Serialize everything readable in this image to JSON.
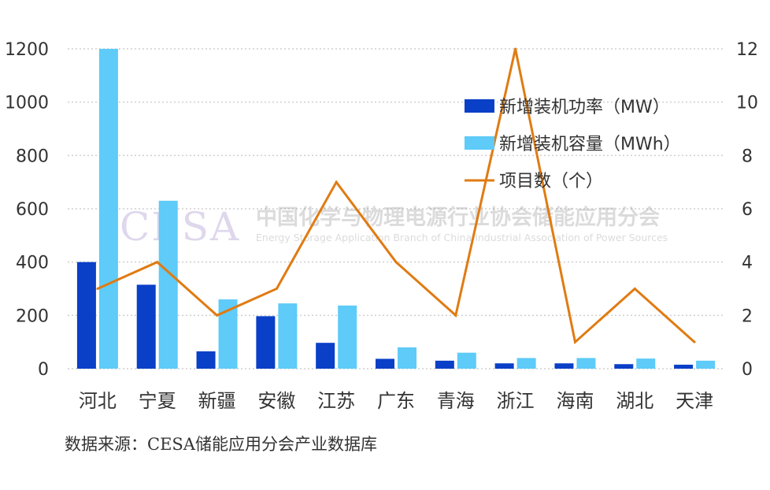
{
  "chart_data": {
    "type": "bar+line",
    "categories": [
      "河北",
      "宁夏",
      "新疆",
      "安徽",
      "江苏",
      "广东",
      "青海",
      "浙江",
      "海南",
      "湖北",
      "天津"
    ],
    "series": [
      {
        "name": "新增装机功率（MW）",
        "kind": "bar",
        "axis": "left",
        "color": "#0a3fc7",
        "values": [
          400,
          315,
          65,
          197,
          97,
          37,
          30,
          20,
          20,
          17,
          15
        ]
      },
      {
        "name": "新增装机容量（MWh）",
        "kind": "bar",
        "axis": "left",
        "color": "#5ecbf8",
        "values": [
          1200,
          630,
          260,
          245,
          237,
          80,
          60,
          40,
          40,
          38,
          30
        ]
      },
      {
        "name": "项目数（个）",
        "kind": "line",
        "axis": "right",
        "color": "#e07b12",
        "values": [
          3,
          4,
          2,
          3,
          7,
          4,
          2,
          12,
          1,
          3,
          1
        ]
      }
    ],
    "y_left": {
      "ylim": [
        0,
        1200
      ],
      "ticks": [
        "0",
        "200",
        "400",
        "600",
        "800",
        "1000",
        "1200"
      ]
    },
    "y_right": {
      "ylim": [
        0,
        12
      ],
      "ticks": [
        "0",
        "2",
        "4",
        "6",
        "8",
        "10",
        "12"
      ]
    },
    "grid": "horizontal-dotted",
    "legend_position": "top-right"
  },
  "watermark": {
    "logo": "CESA",
    "cn": "中国化学与物理电源行业协会储能应用分会",
    "en": "Energy Storage Application Branch of China Industrial Association of Power Sources"
  },
  "source_text": "数据来源：CESA储能应用分会产业数据库"
}
